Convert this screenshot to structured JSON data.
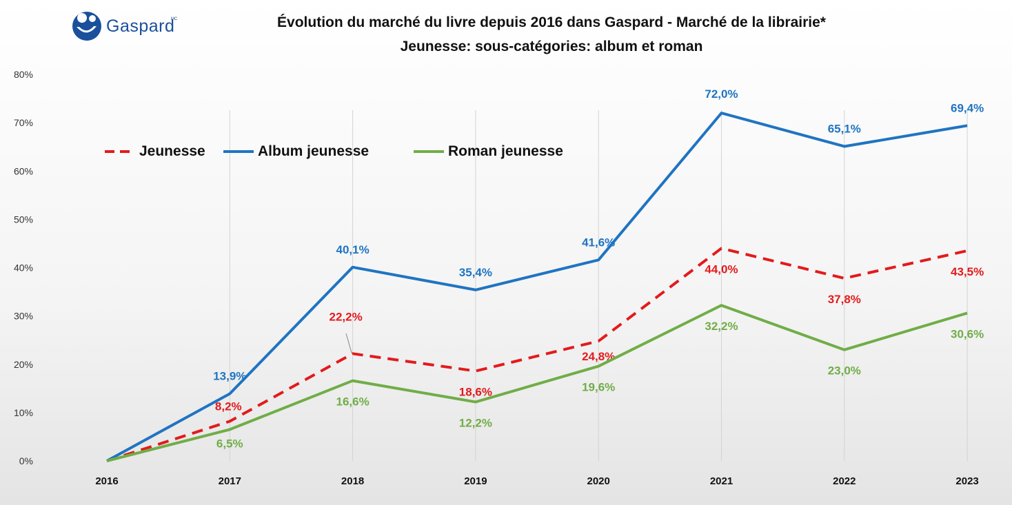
{
  "logo": {
    "text": "Gaspard",
    "mark": "MC"
  },
  "colors": {
    "jeunesse": "#e31a1c",
    "album": "#1f74c2",
    "roman": "#70ad47",
    "grid": "#d3d3d3",
    "axis_text": "#333333"
  },
  "chart_data": {
    "type": "line",
    "title": "Évolution du marché du livre depuis 2016 dans Gaspard - Marché de la librairie*",
    "subtitle": "Jeunesse: sous-catégories: album et roman",
    "xlabel": "",
    "ylabel": "",
    "x": [
      "2016",
      "2017",
      "2018",
      "2019",
      "2020",
      "2021",
      "2022",
      "2023"
    ],
    "ylim": [
      0,
      80
    ],
    "yticks": [
      "0%",
      "10%",
      "20%",
      "30%",
      "40%",
      "50%",
      "60%",
      "70%",
      "80%"
    ],
    "grid": "vertical",
    "legend_position": "top-left",
    "series": [
      {
        "name": "Jeunesse",
        "style": "dashed",
        "color": "#e31a1c",
        "values": [
          0,
          8.2,
          22.2,
          18.6,
          24.8,
          44.0,
          37.8,
          43.5
        ],
        "labels": [
          "",
          "8,2%",
          "22,2%",
          "18,6%",
          "24,8%",
          "44,0%",
          "37,8%",
          "43,5%"
        ]
      },
      {
        "name": "Album jeunesse",
        "style": "solid",
        "color": "#1f74c2",
        "values": [
          0,
          13.9,
          40.1,
          35.4,
          41.6,
          72.0,
          65.1,
          69.4
        ],
        "labels": [
          "",
          "13,9%",
          "40,1%",
          "35,4%",
          "41,6%",
          "72,0%",
          "65,1%",
          "69,4%"
        ]
      },
      {
        "name": "Roman jeunesse",
        "style": "solid",
        "color": "#70ad47",
        "values": [
          0,
          6.5,
          16.6,
          12.2,
          19.6,
          32.2,
          23.0,
          30.6
        ],
        "labels": [
          "",
          "6,5%",
          "16,6%",
          "12,2%",
          "19,6%",
          "32,2%",
          "23,0%",
          "30,6%"
        ]
      }
    ]
  }
}
